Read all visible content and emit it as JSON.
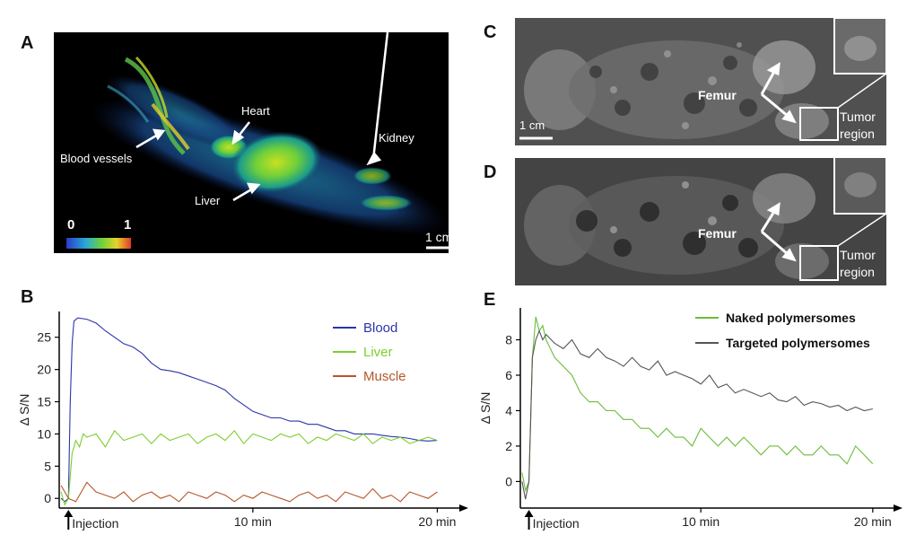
{
  "panels": {
    "a": {
      "letter": "A",
      "labels": {
        "heart": "Heart",
        "kidney": "Kidney",
        "blood_vessels": "Blood vessels",
        "liver": "Liver"
      },
      "colorbar": {
        "min": "0",
        "max": "1"
      },
      "scalebar": "1 cm"
    },
    "c": {
      "letter": "C",
      "femur": "Femur",
      "tumor_line1": "Tumor",
      "tumor_line2": "region",
      "scalebar": "1 cm"
    },
    "d": {
      "letter": "D",
      "femur": "Femur",
      "tumor_line1": "Tumor",
      "tumor_line2": "region"
    },
    "b": {
      "letter": "B"
    },
    "e": {
      "letter": "E"
    }
  },
  "chart_data": [
    {
      "panel": "B",
      "type": "line",
      "ylabel": "Δ S/N",
      "xlabel": "",
      "ylim": [
        -1.5,
        29
      ],
      "yticks": [
        0,
        5,
        10,
        15,
        20,
        25
      ],
      "xlim": [
        -0.5,
        21
      ],
      "xticks": [
        {
          "value": 10,
          "label": "10 min"
        },
        {
          "value": 20,
          "label": "20 min"
        }
      ],
      "injection_label": "Injection",
      "injection_x": 0,
      "legend_position": "top-right",
      "series": [
        {
          "name": "Blood",
          "color": "#2b35a8",
          "x": [
            -0.4,
            -0.2,
            0,
            0.1,
            0.2,
            0.3,
            0.5,
            1,
            1.5,
            2,
            2.5,
            3,
            3.5,
            4,
            4.5,
            5,
            5.5,
            6,
            6.5,
            7,
            7.5,
            8,
            8.5,
            9,
            9.5,
            10,
            10.5,
            11,
            11.5,
            12,
            12.5,
            13,
            13.5,
            14,
            14.5,
            15,
            15.5,
            16,
            16.5,
            17,
            17.5,
            18,
            18.5,
            19,
            19.5,
            20
          ],
          "y": [
            0,
            -0.5,
            0,
            15,
            24,
            27.5,
            28,
            27.8,
            27.2,
            26,
            25,
            24,
            23.5,
            22.5,
            21,
            20,
            19.8,
            19.5,
            19,
            18.5,
            18,
            17.5,
            16.8,
            15.5,
            14.5,
            13.5,
            13,
            12.5,
            12.5,
            12,
            12,
            11.5,
            11.5,
            11,
            10.5,
            10.5,
            10,
            10,
            10,
            9.8,
            9.6,
            9.5,
            9.3,
            9.0,
            8.9,
            9.0
          ]
        },
        {
          "name": "Liver",
          "color": "#7ccf2e",
          "x": [
            -0.4,
            -0.2,
            0,
            0.2,
            0.4,
            0.6,
            0.8,
            1,
            1.5,
            2,
            2.5,
            3,
            3.5,
            4,
            4.5,
            5,
            5.5,
            6,
            6.5,
            7,
            7.5,
            8,
            8.5,
            9,
            9.5,
            10,
            10.5,
            11,
            11.5,
            12,
            12.5,
            13,
            13.5,
            14,
            14.5,
            15,
            15.5,
            16,
            16.5,
            17,
            17.5,
            18,
            18.5,
            19,
            19.5,
            20
          ],
          "y": [
            1,
            -1,
            0,
            7,
            9,
            8,
            10,
            9.5,
            10,
            8,
            10.5,
            9,
            9.5,
            10,
            8.5,
            10,
            9,
            9.5,
            10,
            8.5,
            9.5,
            10,
            9,
            10.5,
            8.5,
            10,
            9.5,
            9,
            10,
            9.5,
            10,
            8.5,
            9.5,
            9,
            10,
            9.5,
            9,
            10,
            8.5,
            9.5,
            9,
            9.5,
            8.5,
            9,
            9.5,
            9
          ]
        },
        {
          "name": "Muscle",
          "color": "#b5572a",
          "x": [
            -0.4,
            0,
            0.4,
            0.8,
            1,
            1.5,
            2,
            2.5,
            3,
            3.5,
            4,
            4.5,
            5,
            5.5,
            6,
            6.5,
            7,
            7.5,
            8,
            8.5,
            9,
            9.5,
            10,
            10.5,
            11,
            11.5,
            12,
            12.5,
            13,
            13.5,
            14,
            14.5,
            15,
            15.5,
            16,
            16.5,
            17,
            17.5,
            18,
            18.5,
            19,
            19.5,
            20
          ],
          "y": [
            2,
            0,
            -0.5,
            1.5,
            2.5,
            1,
            0.5,
            0,
            1,
            -0.5,
            0.5,
            1,
            0,
            0.5,
            -0.5,
            1,
            0.5,
            0,
            1,
            0.5,
            -0.5,
            0.5,
            0,
            1,
            0.5,
            0,
            -0.5,
            0.5,
            1,
            0,
            0.5,
            -0.5,
            1,
            0.5,
            0,
            1.5,
            0,
            0.5,
            -0.5,
            1,
            0.5,
            0,
            1
          ]
        }
      ]
    },
    {
      "panel": "E",
      "type": "line",
      "ylabel": "Δ S/N",
      "xlabel": "",
      "ylim": [
        -1.5,
        9.8
      ],
      "yticks": [
        0,
        2,
        4,
        6,
        8
      ],
      "xlim": [
        -0.5,
        21
      ],
      "xticks": [
        {
          "value": 10,
          "label": "10 min"
        },
        {
          "value": 20,
          "label": "20 min"
        }
      ],
      "injection_label": "Injection",
      "injection_x": 0,
      "legend_position": "top-right",
      "series": [
        {
          "name": "Naked polymersomes",
          "color": "#6abd3a",
          "x": [
            -0.4,
            -0.2,
            0,
            0.2,
            0.4,
            0.6,
            0.8,
            1,
            1.5,
            2,
            2.5,
            3,
            3.5,
            4,
            4.5,
            5,
            5.5,
            6,
            6.5,
            7,
            7.5,
            8,
            8.5,
            9,
            9.5,
            10,
            10.5,
            11,
            11.5,
            12,
            12.5,
            13,
            13.5,
            14,
            14.5,
            15,
            15.5,
            16,
            16.5,
            17,
            17.5,
            18,
            18.5,
            19,
            19.5,
            20
          ],
          "y": [
            0.5,
            -0.5,
            0,
            7,
            9.3,
            8.5,
            8.8,
            8,
            7,
            6.5,
            6,
            5,
            4.5,
            4.5,
            4,
            4,
            3.5,
            3.5,
            3,
            3,
            2.5,
            3,
            2.5,
            2.5,
            2,
            3,
            2.5,
            2,
            2.5,
            2,
            2.5,
            2,
            1.5,
            2,
            2,
            1.5,
            2,
            1.5,
            1.5,
            2,
            1.5,
            1.5,
            1,
            2,
            1.5,
            1
          ]
        },
        {
          "name": "Targeted  polymersomes",
          "color": "#555555",
          "x": [
            -0.4,
            -0.2,
            0,
            0.2,
            0.4,
            0.6,
            0.8,
            1,
            1.5,
            2,
            2.5,
            3,
            3.5,
            4,
            4.5,
            5,
            5.5,
            6,
            6.5,
            7,
            7.5,
            8,
            8.5,
            9,
            9.5,
            10,
            10.5,
            11,
            11.5,
            12,
            12.5,
            13,
            13.5,
            14,
            14.5,
            15,
            15.5,
            16,
            16.5,
            17,
            17.5,
            18,
            18.5,
            19,
            19.5,
            20
          ],
          "y": [
            0,
            -1,
            0,
            7,
            8,
            8.5,
            8,
            8.3,
            7.8,
            7.5,
            8,
            7.2,
            7,
            7.5,
            7,
            6.8,
            6.5,
            7,
            6.5,
            6.3,
            6.8,
            6,
            6.2,
            6,
            5.8,
            5.5,
            6,
            5.3,
            5.5,
            5,
            5.2,
            5,
            4.8,
            5,
            4.6,
            4.5,
            4.8,
            4.3,
            4.5,
            4.4,
            4.2,
            4.3,
            4,
            4.2,
            4,
            4.1
          ]
        }
      ]
    }
  ]
}
